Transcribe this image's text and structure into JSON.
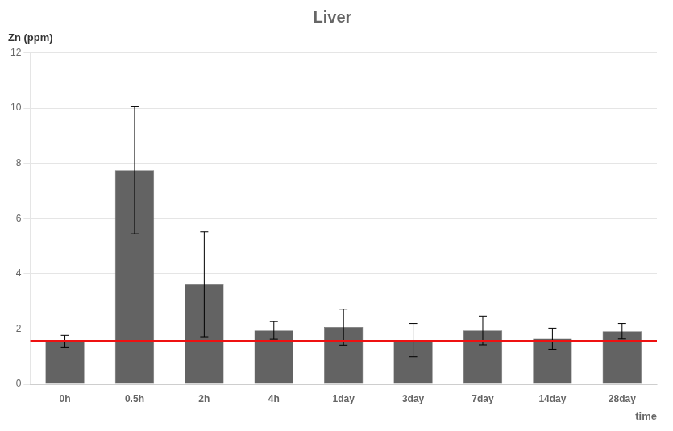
{
  "chart_data": {
    "type": "bar",
    "title": "Liver",
    "ylabel": "Zn (ppm)",
    "xlabel": "time",
    "categories": [
      "0h",
      "0.5h",
      "2h",
      "4h",
      "1day",
      "3day",
      "7day",
      "14day",
      "28day"
    ],
    "values": [
      1.55,
      7.75,
      3.62,
      1.95,
      2.07,
      1.6,
      1.95,
      1.65,
      1.92
    ],
    "errors": [
      0.22,
      2.3,
      1.9,
      0.32,
      0.65,
      0.6,
      0.52,
      0.38,
      0.28
    ],
    "color": "#636363",
    "reference_line": {
      "value": 1.57,
      "color": "#ee1111"
    },
    "ylim": [
      0,
      12
    ],
    "yticks": [
      0,
      2,
      4,
      6,
      8,
      10,
      12
    ],
    "grid": true
  }
}
